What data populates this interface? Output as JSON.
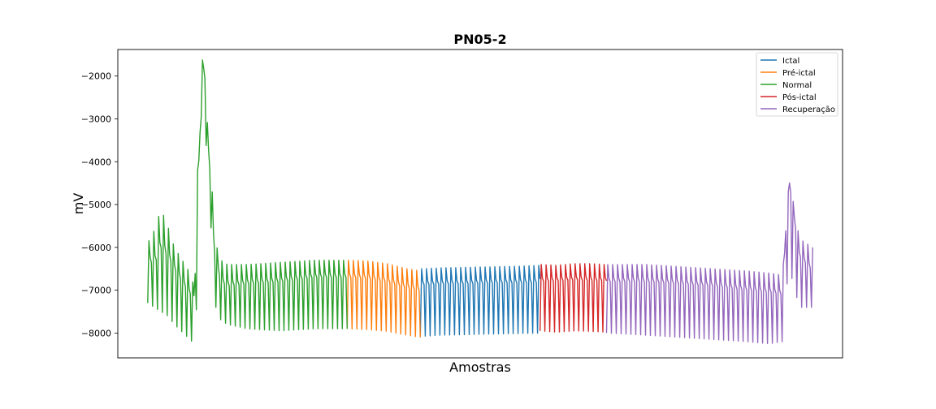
{
  "chart_data": {
    "type": "line",
    "title": "PN05-2",
    "xlabel": "Amostras",
    "ylabel": "mV",
    "ylim": [
      -8580,
      -1380
    ],
    "yticks": [
      -2000,
      -3000,
      -4000,
      -5000,
      -6000,
      -7000,
      -8000
    ],
    "ytick_labels": [
      "−2000",
      "−3000",
      "−4000",
      "−5000",
      "−6000",
      "−7000",
      "−8000"
    ],
    "xticks_shown": false,
    "grid": false,
    "legend_position": "top-right",
    "series": [
      {
        "name": "Ictal",
        "color": "#1f77b4",
        "x": [
          0.41,
          0.44,
          0.47,
          0.5,
          0.53,
          0.56,
          0.59
        ],
        "baseline": [
          -6870,
          -6860,
          -6850,
          -6840,
          -6830,
          -6830,
          -6820
        ],
        "upper": [
          -6500,
          -6480,
          -6470,
          -6460,
          -6450,
          -6440,
          -6420
        ],
        "lower": [
          -8080,
          -8050,
          -8040,
          -8030,
          -8020,
          -8010,
          -8000
        ]
      },
      {
        "name": "Pré-ictal",
        "color": "#ff7f0e",
        "x": [
          0.3,
          0.33,
          0.36,
          0.39,
          0.41
        ],
        "baseline": [
          -6700,
          -6720,
          -6800,
          -6950,
          -7000
        ],
        "upper": [
          -6300,
          -6320,
          -6380,
          -6500,
          -6550
        ],
        "lower": [
          -7900,
          -7920,
          -7960,
          -8050,
          -8100
        ]
      },
      {
        "name": "Normal",
        "color": "#2ca02c",
        "x": [
          0.0,
          0.01,
          0.02,
          0.03,
          0.04,
          0.06,
          0.07,
          0.075,
          0.08,
          0.085,
          0.09,
          0.095,
          0.1,
          0.11,
          0.12,
          0.15,
          0.2,
          0.25,
          0.3
        ],
        "baseline": [
          -6300,
          -6400,
          -6000,
          -6200,
          -6500,
          -7000,
          -7200,
          -5000,
          -2700,
          -1700,
          -3500,
          -4500,
          -6100,
          -6800,
          -6900,
          -6850,
          -6800,
          -6700,
          -6700
        ],
        "upper": [
          -5900,
          -5600,
          -5100,
          -5500,
          -6000,
          -6500,
          -6900,
          -4200,
          -1650,
          -1600,
          -3200,
          -4000,
          -5800,
          -6300,
          -6400,
          -6400,
          -6350,
          -6300,
          -6300
        ],
        "lower": [
          -7300,
          -7400,
          -7500,
          -7600,
          -7800,
          -8100,
          -8250,
          -7000,
          -3000,
          -2500,
          -4500,
          -5500,
          -7300,
          -7700,
          -7800,
          -7900,
          -7950,
          -7900,
          -7900
        ]
      },
      {
        "name": "Pós-ictal",
        "color": "#d62728",
        "x": [
          0.59,
          0.615,
          0.64,
          0.665,
          0.69
        ],
        "baseline": [
          -6800,
          -6780,
          -6760,
          -6770,
          -6780
        ],
        "upper": [
          -6400,
          -6420,
          -6380,
          -6380,
          -6400
        ],
        "lower": [
          -7950,
          -7980,
          -7950,
          -7960,
          -7980
        ]
      },
      {
        "name": "Recuperação",
        "color": "#9467bd",
        "x": [
          0.69,
          0.75,
          0.8,
          0.85,
          0.9,
          0.935,
          0.955,
          0.96,
          0.965,
          0.98,
          1.0
        ],
        "baseline": [
          -6800,
          -6800,
          -6850,
          -6900,
          -7000,
          -7050,
          -7100,
          -5500,
          -4500,
          -6200,
          -6550
        ],
        "upper": [
          -6400,
          -6400,
          -6450,
          -6500,
          -6550,
          -6600,
          -6650,
          -5300,
          -4400,
          -5800,
          -6000
        ],
        "lower": [
          -8000,
          -8050,
          -8100,
          -8150,
          -8200,
          -8250,
          -8200,
          -7000,
          -6500,
          -7400,
          -7400
        ]
      }
    ]
  }
}
